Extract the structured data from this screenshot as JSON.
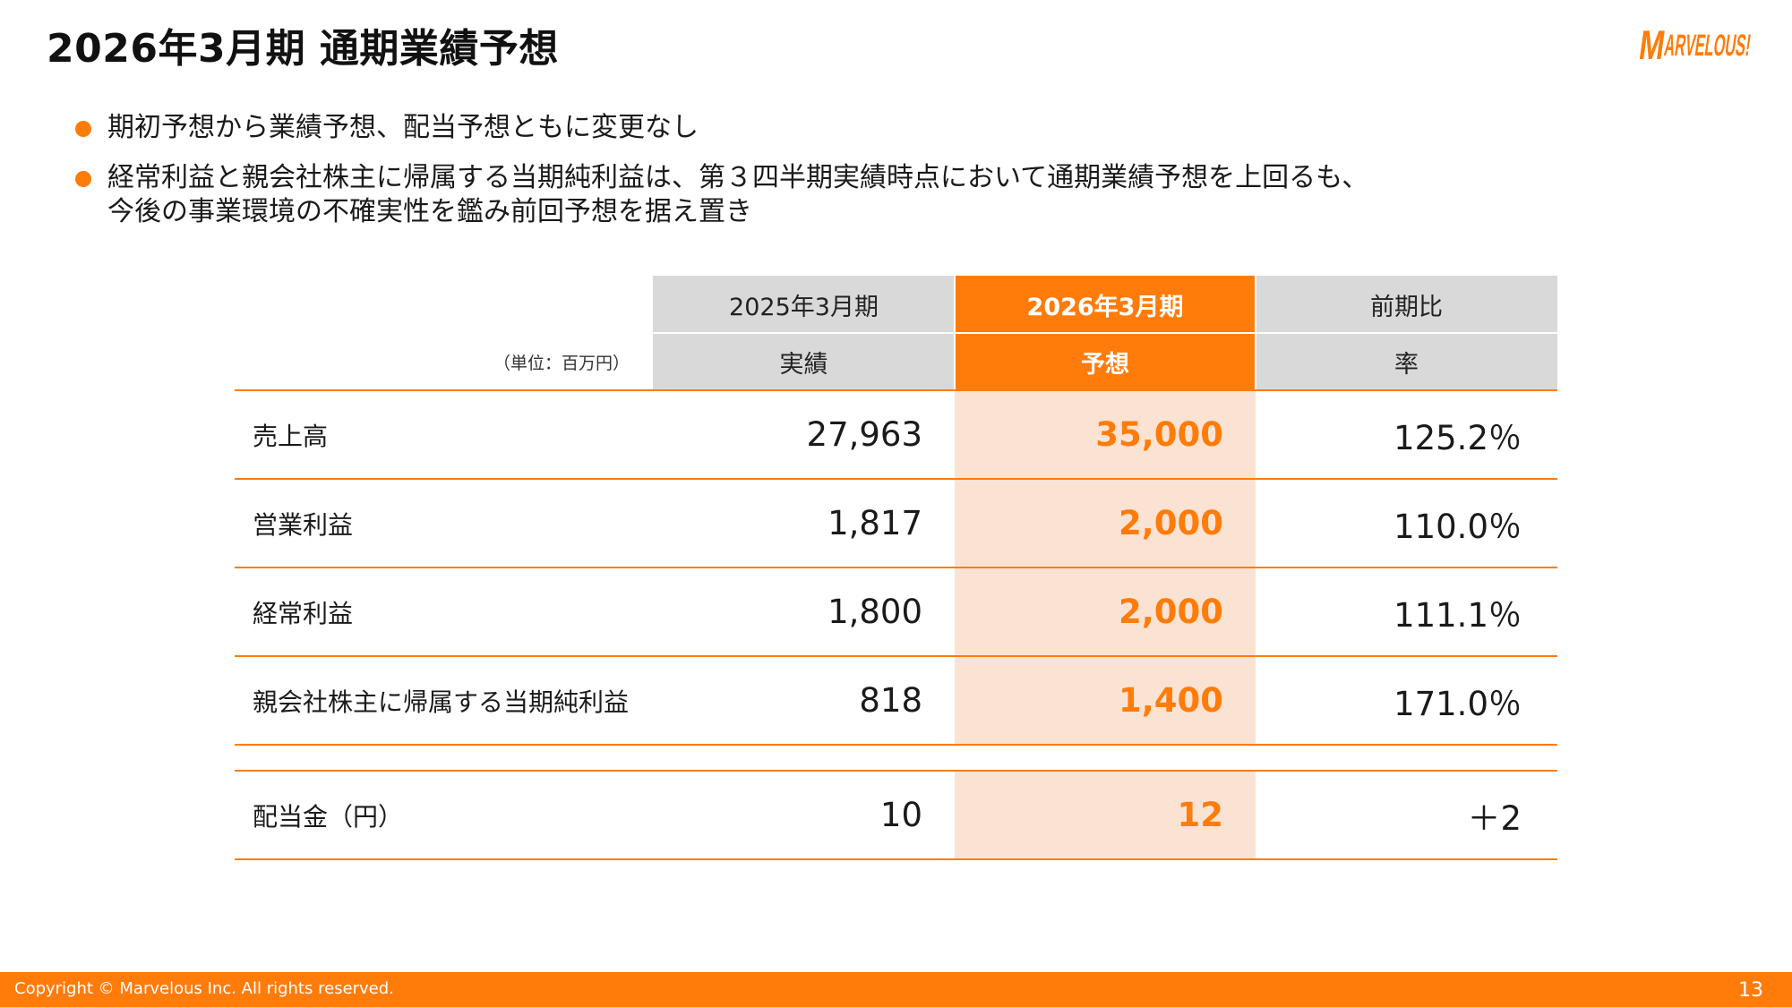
{
  "title": "2026年3月期 通期業績予想",
  "logo_text": "MARVELOUS!",
  "bullets": [
    {
      "lines": [
        "期初予想から業績予想、配当予想ともに変更なし"
      ]
    },
    {
      "lines": [
        "経常利益と親会社株主に帰属する当期純利益は、第３四半期実績時点において通期業績予想を上回るも、",
        "今後の事業環境の不確実性を鑑み前回予想を据え置き"
      ]
    }
  ],
  "table": {
    "unit_label": "（単位：百万円）",
    "headers": [
      {
        "period": "2025年3月期",
        "type": "実績"
      },
      {
        "period": "2026年3月期",
        "type": "予想"
      },
      {
        "period": "前期比",
        "type": "率"
      }
    ],
    "rows": [
      {
        "label": "売上高",
        "actual": "27,963",
        "forecast": "35,000",
        "ratio": "125.2％"
      },
      {
        "label": "営業利益",
        "actual": "1,817",
        "forecast": "2,000",
        "ratio": "110.0％"
      },
      {
        "label": "経常利益",
        "actual": "1,800",
        "forecast": "2,000",
        "ratio": "111.1％"
      },
      {
        "label": "親会社株主に帰属する当期純利益",
        "actual": "818",
        "forecast": "1,400",
        "ratio": "171.0％"
      }
    ],
    "dividend": {
      "label": "配当金（円）",
      "actual": "10",
      "forecast": "12",
      "ratio": "＋2"
    }
  },
  "colors": {
    "accent": "#ff7c0a",
    "header_gray": "#d9d9d9",
    "forecast_bg": "#fbe3d4"
  },
  "footer": {
    "copyright": "Copyright © Marvelous Inc. All rights reserved.",
    "page": "13"
  }
}
